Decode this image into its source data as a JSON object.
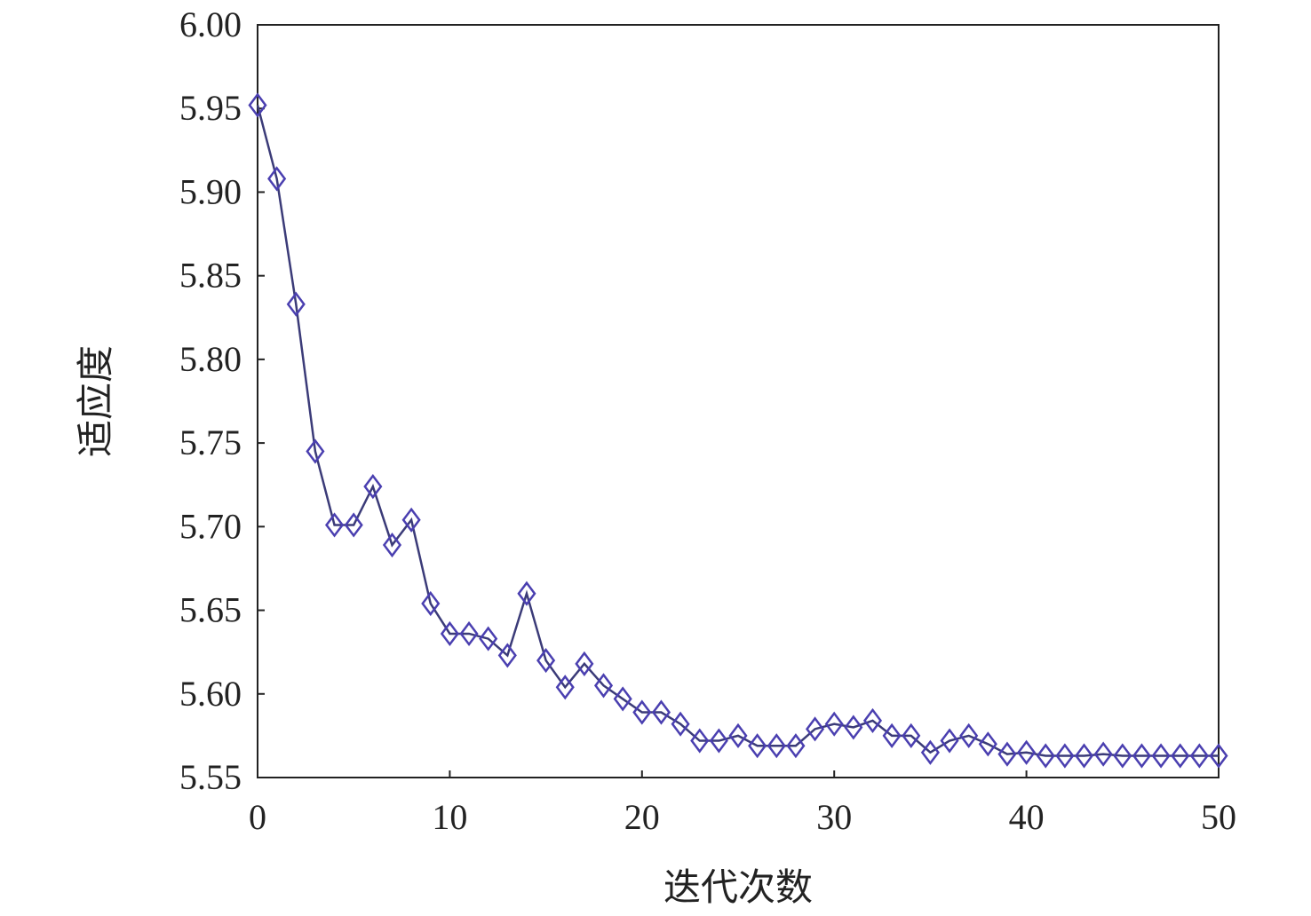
{
  "chart_data": {
    "type": "line",
    "title": "",
    "xlabel": "迭代次数",
    "ylabel": "适应度",
    "xlim": [
      0,
      50
    ],
    "ylim": [
      5.55,
      6.0
    ],
    "xticks": [
      "0",
      "10",
      "20",
      "30",
      "40",
      "50"
    ],
    "yticks": [
      "5.55",
      "5.60",
      "5.65",
      "5.70",
      "5.75",
      "5.80",
      "5.85",
      "5.90",
      "5.95",
      "6.00"
    ],
    "grid": false,
    "marker": "diamond",
    "colors": {
      "line": "#3b3b78",
      "marker": "#4a3fb0"
    },
    "series": [
      {
        "x": [
          0,
          1,
          2,
          3,
          4,
          5,
          6,
          7,
          8,
          9,
          10,
          11,
          12,
          13,
          14,
          15,
          16,
          17,
          18,
          19,
          20,
          21,
          22,
          23,
          24,
          25,
          26,
          27,
          28,
          29,
          30,
          31,
          32,
          33,
          34,
          35,
          36,
          37,
          38,
          39,
          40,
          41,
          42,
          43,
          44,
          45,
          46,
          47,
          48,
          49,
          50
        ],
        "values": [
          5.952,
          5.908,
          5.833,
          5.745,
          5.701,
          5.701,
          5.724,
          5.689,
          5.704,
          5.654,
          5.636,
          5.636,
          5.633,
          5.623,
          5.66,
          5.62,
          5.604,
          5.618,
          5.605,
          5.597,
          5.589,
          5.589,
          5.582,
          5.572,
          5.572,
          5.575,
          5.569,
          5.569,
          5.569,
          5.579,
          5.582,
          5.58,
          5.584,
          5.575,
          5.575,
          5.565,
          5.572,
          5.575,
          5.57,
          5.564,
          5.565,
          5.563,
          5.563,
          5.563,
          5.564,
          5.563,
          5.563,
          5.563,
          5.563,
          5.563,
          5.563
        ]
      }
    ]
  }
}
